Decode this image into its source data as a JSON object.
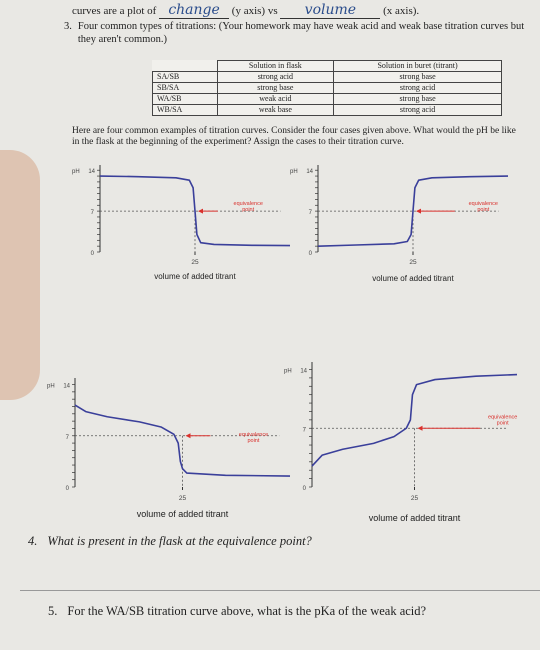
{
  "header": {
    "prefix": "curves are a plot of",
    "y_fill": "change",
    "y_suffix": "(y axis) vs",
    "x_fill": "volume",
    "x_suffix": "(x axis)."
  },
  "question3": {
    "number": "3.",
    "text": "Four common types of titrations: (Your homework may have weak acid and weak base titration curves but they aren't common.)"
  },
  "table": {
    "headers": [
      "Solution in flask",
      "Solution in buret (titrant)"
    ],
    "rows": [
      [
        "SA/SB",
        "strong acid",
        "strong base"
      ],
      [
        "SB/SA",
        "strong base",
        "strong acid"
      ],
      [
        "WA/SB",
        "weak acid",
        "strong base"
      ],
      [
        "WB/SA",
        "weak base",
        "strong acid"
      ]
    ]
  },
  "instructions": "Here are four common examples of titration curves. Consider the four cases given above. What would the pH be like in the flask at the beginning of the experiment? Assign the cases to their titration curve.",
  "graphs": [
    {
      "y_label": "pH",
      "y_top": "14",
      "y_mid": "7",
      "y_bottom": "0",
      "x_tick": "25",
      "annotation": [
        "equivalence",
        "point"
      ],
      "x_label": "volume of added titrant"
    },
    {
      "y_label": "pH",
      "y_top": "14",
      "y_mid": "7",
      "y_bottom": "0",
      "x_tick": "25",
      "annotation": [
        "equivalence",
        "point"
      ],
      "x_label": "volume of added titrant"
    },
    {
      "y_label": "pH",
      "y_top": "14",
      "y_mid": "7",
      "y_bottom": "0",
      "x_tick": "25",
      "annotation": [
        "equivalence",
        "point"
      ],
      "x_label": "volume of added titrant"
    },
    {
      "y_label": "pH",
      "y_top": "14",
      "y_mid": "7",
      "y_bottom": "0",
      "x_tick": "25",
      "annotation": [
        "equivalence",
        "point"
      ],
      "x_label": "volume of added titrant"
    }
  ],
  "question4": {
    "number": "4.",
    "text": "What is present in the flask at the equivalence point?"
  },
  "question5": {
    "number": "5.",
    "text": "For the WA/SB titration curve above, what is the pKa of the weak acid?"
  }
}
